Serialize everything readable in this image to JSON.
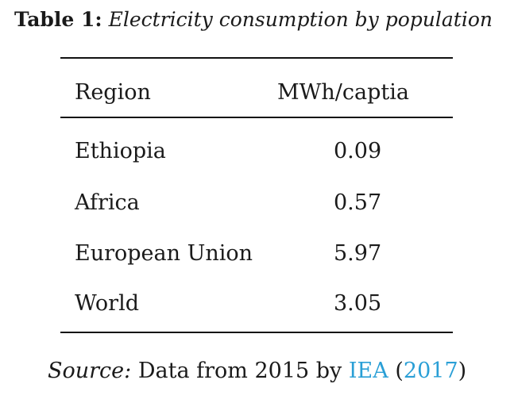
{
  "caption": {
    "label": "Table 1:",
    "title": "Electricity consumption by population"
  },
  "table": {
    "headers": [
      "Region",
      "MWh/captia"
    ],
    "rows": [
      {
        "region": "Ethiopia",
        "value": "0.09"
      },
      {
        "region": "Africa",
        "value": "0.57"
      },
      {
        "region": "European Union",
        "value": "5.97"
      },
      {
        "region": "World",
        "value": "3.05"
      }
    ]
  },
  "source": {
    "label": "Source:",
    "text": "Data from 2015 by",
    "author": "IEA",
    "open_paren": "(",
    "year": "2017",
    "close_paren": ")",
    "link_color": "#2a9fd6"
  }
}
